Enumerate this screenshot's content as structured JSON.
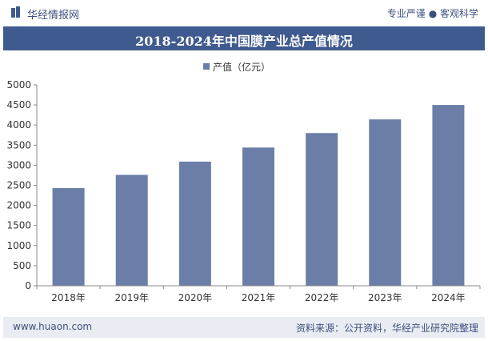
{
  "header": {
    "brand": "华经情报网",
    "tagline": "专业严谨 ● 客观科学"
  },
  "title": "2018-2024年中国膜产业总产值情况",
  "footer": {
    "site": "www.huaon.com",
    "source": "资料来源：公开资料，华经产业研究院整理"
  },
  "colors": {
    "bar": "#6a7ea8",
    "title_bar": "#3f5a8e",
    "text": "#3d4f7c"
  },
  "chart_data": {
    "type": "bar",
    "title": "2018-2024年中国膜产业总产值情况",
    "categories": [
      "2018年",
      "2019年",
      "2020年",
      "2021年",
      "2022年",
      "2023年",
      "2024年"
    ],
    "series": [
      {
        "name": "产值（亿元）",
        "values": [
          2430,
          2760,
          3090,
          3440,
          3800,
          4140,
          4500
        ]
      }
    ],
    "ylim": [
      0,
      5000
    ],
    "yticks": [
      0,
      500,
      1000,
      1500,
      2000,
      2500,
      3000,
      3500,
      4000,
      4500,
      5000
    ],
    "xlabel": "",
    "ylabel": "",
    "legend": "top-center",
    "grid": false
  }
}
